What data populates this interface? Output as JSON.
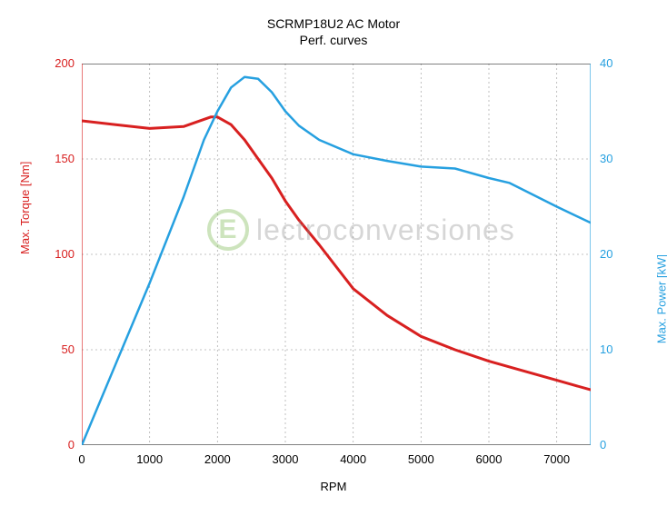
{
  "chart": {
    "type": "line",
    "title": "SCRMP18U2  AC Motor",
    "subtitle": "Perf. curves",
    "title_fontsize": 14,
    "background_color": "#ffffff",
    "grid_color": "#b0b0b0",
    "grid_dash": "2,3",
    "border_color": "#000000",
    "x": {
      "label": "RPM",
      "min": 0,
      "max": 7500,
      "tick_step": 1000,
      "ticks": [
        "0",
        "1000",
        "2000",
        "3000",
        "4000",
        "5000",
        "6000",
        "7000"
      ],
      "label_color": "#000000",
      "label_fontsize": 13
    },
    "y_left": {
      "label": "Max. Torque [Nm]",
      "color": "#d82020",
      "min": 0,
      "max": 200,
      "tick_step": 50,
      "ticks": [
        "0",
        "50",
        "100",
        "150",
        "200"
      ],
      "label_fontsize": 13
    },
    "y_right": {
      "label": "Max. Power [kW]",
      "color": "#26a0e0",
      "min": 0,
      "max": 40,
      "tick_step": 10,
      "ticks": [
        "0",
        "10",
        "20",
        "30",
        "40"
      ],
      "label_fontsize": 13
    },
    "series": {
      "torque": {
        "axis": "left",
        "color": "#d82020",
        "line_width": 3,
        "x": [
          0,
          500,
          1000,
          1500,
          1900,
          2000,
          2200,
          2400,
          2600,
          2800,
          3000,
          3200,
          3500,
          4000,
          4500,
          5000,
          5500,
          6000,
          6500,
          7000,
          7500
        ],
        "y": [
          170,
          168,
          166,
          167,
          172,
          172,
          168,
          160,
          150,
          140,
          128,
          118,
          105,
          82,
          68,
          57,
          50,
          44,
          39,
          34,
          29
        ]
      },
      "power": {
        "axis": "right",
        "color": "#26a0e0",
        "line_width": 2.5,
        "x": [
          0,
          500,
          1000,
          1500,
          1800,
          2000,
          2200,
          2400,
          2600,
          2800,
          3000,
          3200,
          3500,
          4000,
          4500,
          5000,
          5500,
          6000,
          6300,
          7000,
          7500
        ],
        "y": [
          0,
          8.5,
          17,
          26,
          32,
          35,
          37.5,
          38.6,
          38.4,
          37,
          35,
          33.5,
          32,
          30.5,
          29.8,
          29.2,
          29,
          28,
          27.5,
          25,
          23.3
        ]
      }
    },
    "watermark": {
      "text": "lectroconversiones",
      "logo_letter": "E",
      "text_color": "#8c8c8c",
      "logo_color": "#71b544",
      "opacity": 0.35,
      "fontsize": 32
    }
  }
}
